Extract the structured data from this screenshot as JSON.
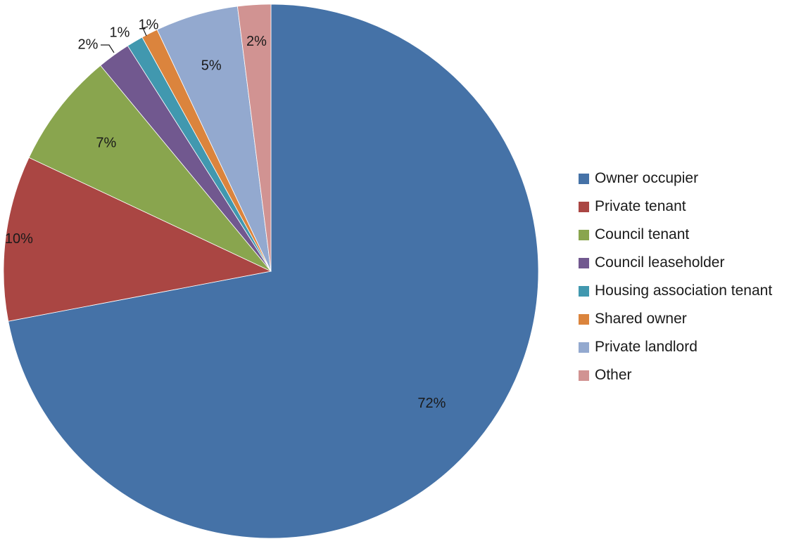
{
  "chart_data": {
    "type": "pie",
    "title": "",
    "start_angle_deg": 0,
    "direction": "clockwise",
    "legend_position": "right",
    "slices": [
      {
        "label": "Owner occupier",
        "value": 72,
        "display": "72%",
        "color": "#4572A7"
      },
      {
        "label": "Private tenant",
        "value": 10,
        "display": "10%",
        "color": "#AA4643"
      },
      {
        "label": "Council tenant",
        "value": 7,
        "display": "7%",
        "color": "#89A54E"
      },
      {
        "label": "Council leaseholder",
        "value": 2,
        "display": "2%",
        "color": "#71588F"
      },
      {
        "label": "Housing association tenant",
        "value": 1,
        "display": "1%",
        "color": "#4198AF"
      },
      {
        "label": "Shared owner",
        "value": 1,
        "display": "1%",
        "color": "#DB843D"
      },
      {
        "label": "Private landlord",
        "value": 5,
        "display": "5%",
        "color": "#93A9CF"
      },
      {
        "label": "Other",
        "value": 2,
        "display": "2%",
        "color": "#D19392"
      }
    ]
  }
}
